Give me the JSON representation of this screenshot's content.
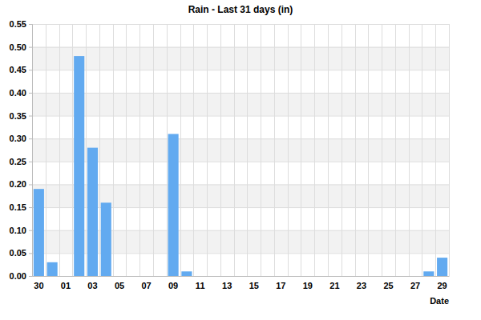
{
  "chart_data": {
    "type": "bar",
    "title": "Rain - Last 31 days (in)",
    "x_label": "Date",
    "categories": [
      "30",
      null,
      "01",
      null,
      "03",
      null,
      "05",
      null,
      "07",
      null,
      "09",
      null,
      "11",
      null,
      "13",
      null,
      "15",
      null,
      "17",
      null,
      "19",
      null,
      "21",
      null,
      "23",
      null,
      "25",
      null,
      "27",
      null,
      "29"
    ],
    "values": [
      0.19,
      0.03,
      0,
      0.48,
      0.28,
      0.16,
      0,
      0,
      0,
      0,
      0.31,
      0.01,
      0,
      0,
      0,
      0,
      0,
      0,
      0,
      0,
      0,
      0,
      0,
      0,
      0,
      0,
      0,
      0,
      0,
      0.01,
      0.04
    ],
    "color": "#62aaf0",
    "ylim": [
      0,
      0.55
    ],
    "yticks": [
      {
        "value": 0,
        "label": "0.00"
      },
      {
        "value": 0.05,
        "label": "0.05"
      },
      {
        "value": 0.1,
        "label": "0.10"
      },
      {
        "value": 0.15,
        "label": "0.15"
      },
      {
        "value": 0.2,
        "label": "0.20"
      },
      {
        "value": 0.25,
        "label": "0.25"
      },
      {
        "value": 0.3,
        "label": "0.30"
      },
      {
        "value": 0.35,
        "label": "0.35"
      },
      {
        "value": 0.4,
        "label": "0.40"
      },
      {
        "value": 0.45,
        "label": "0.45"
      },
      {
        "value": 0.5,
        "label": "0.50"
      },
      {
        "value": 0.55,
        "label": "0.55"
      }
    ],
    "grid": true
  }
}
